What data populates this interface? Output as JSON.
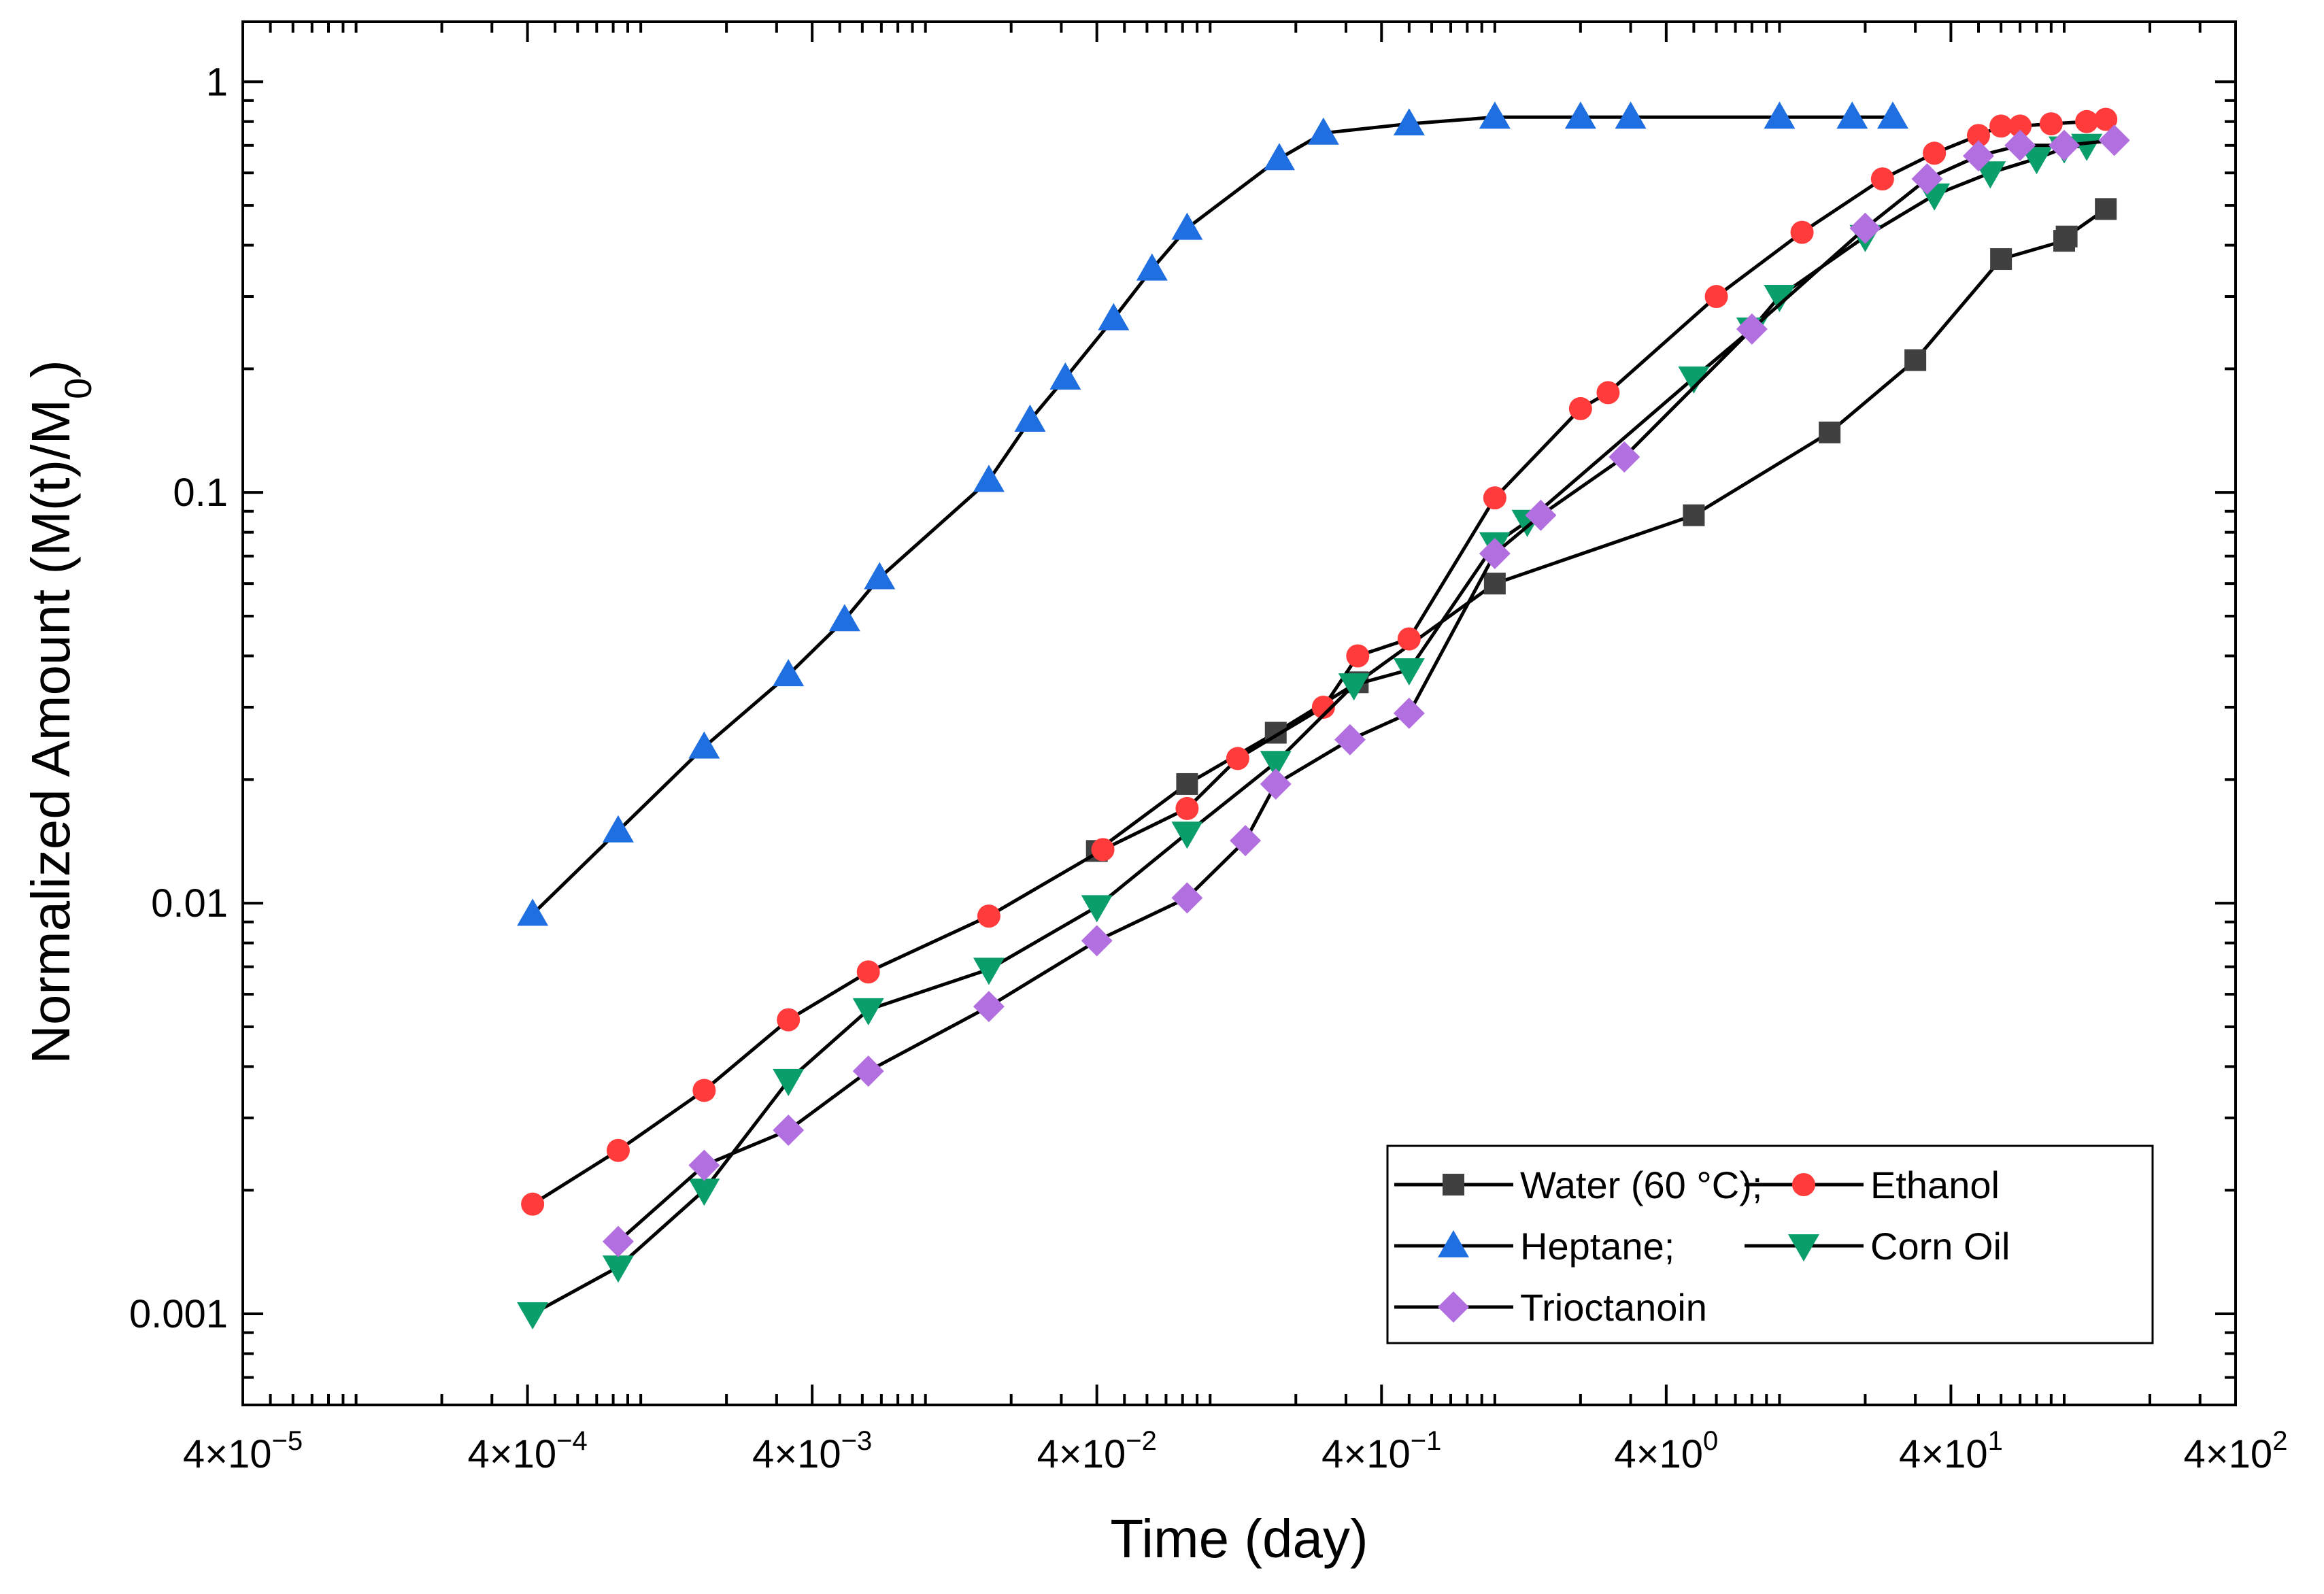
{
  "chart_data": {
    "type": "line",
    "title": "",
    "xlabel": "Time (day)",
    "ylabel": "Normalized Amount (M(t)/M0)",
    "ylabel_parts": {
      "main": "Normalized Amount (M(t)/M",
      "sub": "0",
      "close": ")"
    },
    "x_scale": "log",
    "y_scale": "log",
    "xlim": [
      4e-05,
      400
    ],
    "ylim": [
      0.0006,
      1.4
    ],
    "x_ticks": [
      {
        "value": 4e-05,
        "base": "4×10",
        "exp": "−5"
      },
      {
        "value": 0.0004,
        "base": "4×10",
        "exp": "−4"
      },
      {
        "value": 0.004,
        "base": "4×10",
        "exp": "−3"
      },
      {
        "value": 0.04,
        "base": "4×10",
        "exp": "−2"
      },
      {
        "value": 0.4,
        "base": "4×10",
        "exp": "−1"
      },
      {
        "value": 4,
        "base": "4×10",
        "exp": "0"
      },
      {
        "value": 40,
        "base": "4×10",
        "exp": "1"
      },
      {
        "value": 400,
        "base": "4×10",
        "exp": "2"
      }
    ],
    "y_ticks": [
      {
        "value": 0.001,
        "label": "0.001"
      },
      {
        "value": 0.01,
        "label": "0.01"
      },
      {
        "value": 0.1,
        "label": "0.1"
      },
      {
        "value": 1,
        "label": "1"
      }
    ],
    "legend": {
      "position": "bottom-right",
      "entries": [
        "Water (60 °C);",
        "Ethanol",
        "Heptane;",
        "Corn Oil",
        "Trioctanoin"
      ]
    },
    "series": [
      {
        "name": "Water (60 °C)",
        "legend_label": "Water (60 °C);",
        "marker": "square",
        "color": "#404040",
        "x": [
          0.04,
          0.083,
          0.17,
          0.33,
          1.0,
          5.0,
          15.0,
          30.0,
          60.0,
          100.0,
          102.0,
          140.0
        ],
        "y": [
          0.0134,
          0.0195,
          0.026,
          0.0345,
          0.06,
          0.088,
          0.14,
          0.21,
          0.37,
          0.41,
          0.42,
          0.49
        ]
      },
      {
        "name": "Ethanol",
        "legend_label": "Ethanol",
        "marker": "circle",
        "color": "#ff3b3b",
        "x": [
          0.000417,
          0.000833,
          0.00167,
          0.0033,
          0.0063,
          0.0167,
          0.042,
          0.083,
          0.125,
          0.25,
          0.33,
          0.5,
          1.0,
          2.0,
          2.5,
          6.0,
          12.0,
          23.0,
          35.0,
          50.0,
          60.0,
          70.0,
          90.0,
          120.0,
          140.0
        ],
        "y": [
          0.00185,
          0.0025,
          0.0035,
          0.0052,
          0.0068,
          0.0093,
          0.0135,
          0.017,
          0.0225,
          0.03,
          0.04,
          0.044,
          0.097,
          0.16,
          0.175,
          0.3,
          0.43,
          0.58,
          0.67,
          0.74,
          0.78,
          0.78,
          0.79,
          0.8,
          0.81
        ]
      },
      {
        "name": "Heptane",
        "legend_label": "Heptane;",
        "marker": "triangle-up",
        "color": "#1f6fe0",
        "x": [
          0.000417,
          0.000833,
          0.00167,
          0.0033,
          0.0052,
          0.0069,
          0.0167,
          0.0233,
          0.031,
          0.0458,
          0.0625,
          0.083,
          0.175,
          0.25,
          0.5,
          1.0,
          2.0,
          3.0,
          10.0,
          18.0,
          25.0
        ],
        "y": [
          0.0094,
          0.015,
          0.024,
          0.036,
          0.049,
          0.062,
          0.107,
          0.15,
          0.19,
          0.265,
          0.35,
          0.44,
          0.65,
          0.75,
          0.79,
          0.82,
          0.82,
          0.82,
          0.82,
          0.82,
          0.82
        ]
      },
      {
        "name": "Corn Oil",
        "legend_label": "Corn Oil",
        "marker": "triangle-down",
        "color": "#0a9e6a",
        "x": [
          0.000417,
          0.000833,
          0.00167,
          0.0033,
          0.0063,
          0.0167,
          0.04,
          0.083,
          0.17,
          0.32,
          0.5,
          1.0,
          1.3,
          5.0,
          8.0,
          10.0,
          20.0,
          35.0,
          55.0,
          80.0,
          100.0,
          120.0
        ],
        "y": [
          0.001,
          0.0013,
          0.002,
          0.0037,
          0.0055,
          0.0069,
          0.0098,
          0.0148,
          0.022,
          0.034,
          0.037,
          0.075,
          0.085,
          0.19,
          0.25,
          0.3,
          0.42,
          0.53,
          0.6,
          0.65,
          0.69,
          0.7
        ]
      },
      {
        "name": "Trioctanoin",
        "legend_label": "Trioctanoin",
        "marker": "diamond",
        "color": "#b26fe0",
        "x": [
          0.000833,
          0.00167,
          0.0033,
          0.0063,
          0.0167,
          0.04,
          0.083,
          0.133,
          0.17,
          0.31,
          0.5,
          1.0,
          1.45,
          2.85,
          8.0,
          20.0,
          33.0,
          50.0,
          70.0,
          100.0,
          150.0
        ],
        "y": [
          0.0015,
          0.0023,
          0.0028,
          0.0039,
          0.0056,
          0.0081,
          0.0103,
          0.0142,
          0.0195,
          0.025,
          0.029,
          0.071,
          0.088,
          0.122,
          0.25,
          0.44,
          0.58,
          0.66,
          0.7,
          0.7,
          0.72
        ]
      }
    ]
  }
}
